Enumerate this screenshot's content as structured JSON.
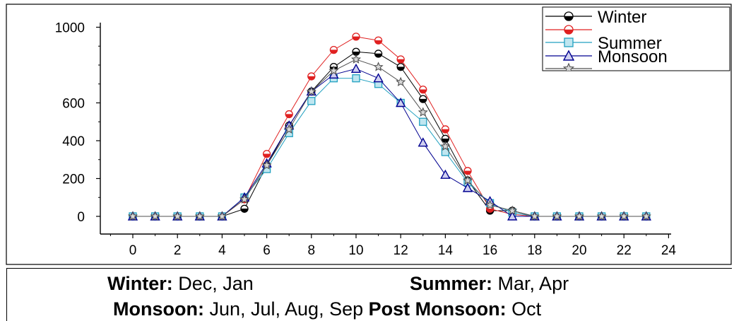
{
  "chart_data": {
    "type": "line",
    "x": [
      0,
      1,
      2,
      3,
      4,
      5,
      6,
      7,
      8,
      9,
      10,
      11,
      12,
      13,
      14,
      15,
      16,
      17,
      18,
      19,
      20,
      21,
      22,
      23
    ],
    "xlim": [
      -1,
      24
    ],
    "ylim": [
      -80,
      1010
    ],
    "xticks": [
      0,
      2,
      4,
      6,
      8,
      10,
      12,
      14,
      16,
      18,
      20,
      22,
      24
    ],
    "yticks": [
      0,
      200,
      400,
      600,
      1000
    ],
    "ytick_labels": [
      "0",
      "200",
      "400",
      "600",
      "1000"
    ],
    "legend_position": "top-right",
    "series": [
      {
        "name": "Winter",
        "color": "#000000",
        "marker": "circle-half",
        "values": [
          0,
          0,
          0,
          0,
          0,
          40,
          270,
          480,
          660,
          790,
          870,
          860,
          790,
          620,
          410,
          190,
          30,
          30,
          0,
          0,
          0,
          0,
          0,
          0
        ]
      },
      {
        "name": "",
        "color": "#e02020",
        "marker": "circle-half",
        "values": [
          0,
          0,
          0,
          0,
          0,
          90,
          330,
          540,
          740,
          880,
          950,
          930,
          830,
          670,
          460,
          240,
          40,
          10,
          0,
          0,
          0,
          0,
          0,
          0
        ]
      },
      {
        "name": "Summer",
        "color": "#20a0c0",
        "marker": "square",
        "values": [
          0,
          0,
          0,
          0,
          0,
          100,
          250,
          440,
          610,
          730,
          730,
          700,
          600,
          500,
          340,
          180,
          70,
          20,
          0,
          0,
          0,
          0,
          0,
          0
        ]
      },
      {
        "name": "Monsoon",
        "color": "#000090",
        "marker": "triangle",
        "values": [
          0,
          0,
          0,
          0,
          0,
          100,
          280,
          480,
          660,
          750,
          780,
          730,
          600,
          390,
          220,
          150,
          80,
          0,
          0,
          0,
          0,
          0,
          0,
          0
        ]
      },
      {
        "name": "",
        "color": "#505050",
        "marker": "star",
        "values": [
          0,
          0,
          0,
          0,
          0,
          90,
          270,
          460,
          660,
          770,
          830,
          790,
          710,
          550,
          370,
          190,
          60,
          30,
          0,
          0,
          0,
          0,
          0,
          0
        ]
      }
    ]
  },
  "caption": {
    "line1": [
      {
        "bold": "Winter:",
        "text": " Dec, Jan"
      },
      {
        "bold": "Summer:",
        "text": " Mar, Apr"
      }
    ],
    "line2": [
      {
        "bold": "Monsoon:",
        "text": " Jun, Jul, Aug, Sep"
      },
      {
        "bold": "Post Monsoon:",
        "text": " Oct"
      }
    ]
  }
}
